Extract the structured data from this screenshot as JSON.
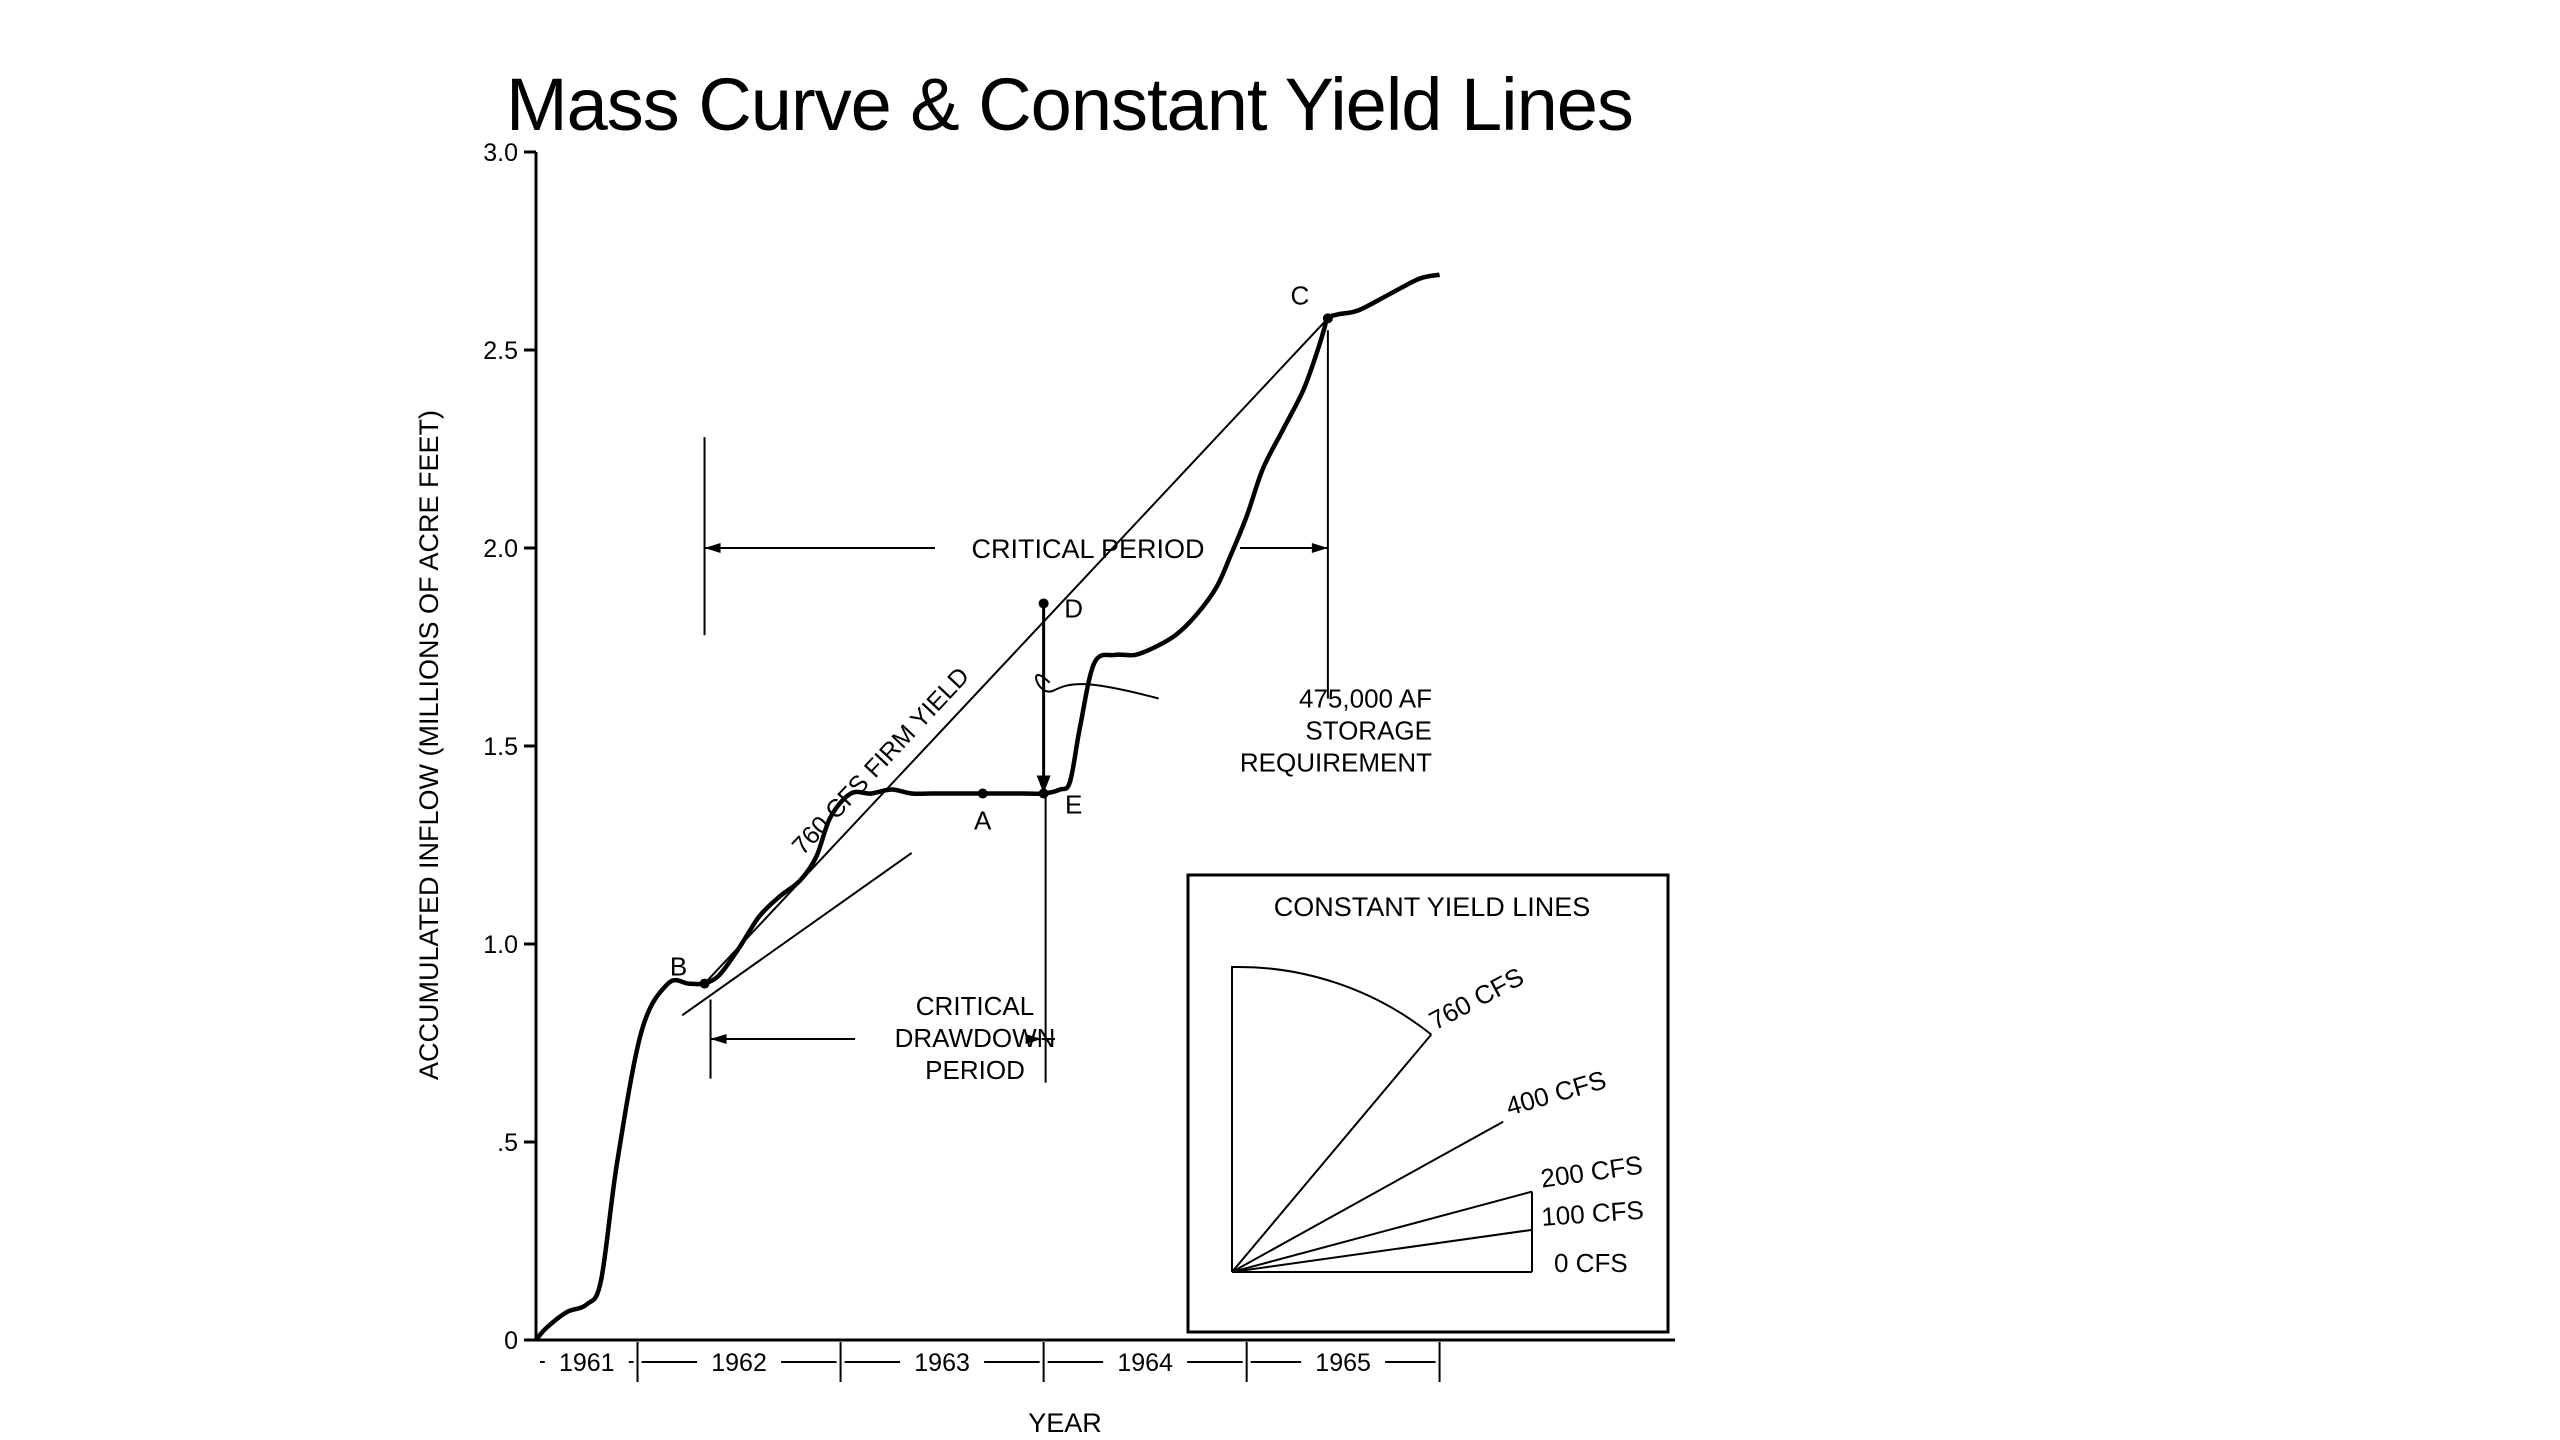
{
  "slide_title": "Mass Curve & Constant Yield Lines",
  "chart_data": {
    "type": "line",
    "ylabel": "ACCUMULATED INFLOW (MILLIONS OF ACRE FEET)",
    "xlabel": "YEAR",
    "ylim": [
      0,
      3.0
    ],
    "xlim": [
      1961.0,
      1966.25
    ],
    "yticks": [
      {
        "value": 0,
        "label": "0"
      },
      {
        "value": 0.5,
        "label": ".5"
      },
      {
        "value": 1.0,
        "label": "1.0"
      },
      {
        "value": 1.5,
        "label": "1.5"
      },
      {
        "value": 2.0,
        "label": "2.0"
      },
      {
        "value": 2.5,
        "label": "2.5"
      },
      {
        "value": 3.0,
        "label": "3.0"
      }
    ],
    "year_labels": [
      {
        "label": "1961",
        "start": 1961.0,
        "end": 1961.5
      },
      {
        "label": "1962",
        "start": 1961.5,
        "end": 1962.5
      },
      {
        "label": "1963",
        "start": 1962.5,
        "end": 1963.5
      },
      {
        "label": "1964",
        "start": 1963.5,
        "end": 1964.5
      },
      {
        "label": "1965",
        "start": 1964.5,
        "end": 1965.45
      }
    ],
    "mass_curve": {
      "x": [
        1961.0,
        1961.05,
        1961.15,
        1961.25,
        1961.32,
        1961.4,
        1961.52,
        1961.65,
        1961.75,
        1961.82,
        1961.9,
        1962.0,
        1962.1,
        1962.2,
        1962.3,
        1962.38,
        1962.45,
        1962.55,
        1962.65,
        1962.75,
        1962.85,
        1962.95,
        1963.05,
        1963.15,
        1963.25,
        1963.4,
        1963.5,
        1963.58,
        1963.63,
        1963.68,
        1963.75,
        1963.85,
        1963.95,
        1964.05,
        1964.15,
        1964.25,
        1964.35,
        1964.42,
        1964.5,
        1964.58,
        1964.68,
        1964.78,
        1964.85,
        1964.88,
        1964.9,
        1964.95,
        1965.05,
        1965.2,
        1965.35,
        1965.45
      ],
      "y": [
        0.0,
        0.03,
        0.07,
        0.09,
        0.15,
        0.45,
        0.78,
        0.9,
        0.9,
        0.9,
        0.92,
        0.99,
        1.07,
        1.12,
        1.16,
        1.22,
        1.32,
        1.38,
        1.38,
        1.39,
        1.38,
        1.38,
        1.38,
        1.38,
        1.38,
        1.38,
        1.38,
        1.39,
        1.41,
        1.55,
        1.71,
        1.73,
        1.73,
        1.75,
        1.78,
        1.83,
        1.9,
        1.98,
        2.08,
        2.2,
        2.3,
        2.4,
        2.5,
        2.55,
        2.58,
        2.59,
        2.6,
        2.64,
        2.68,
        2.69
      ]
    },
    "firm_yield_line": {
      "label": "760 CFS FIRM YIELD",
      "from": [
        1961.83,
        0.9
      ],
      "to": [
        1964.9,
        2.58
      ]
    },
    "tangent_line": {
      "from": [
        1961.72,
        0.82
      ],
      "to": [
        1962.85,
        1.23
      ]
    },
    "points": [
      {
        "label": "A",
        "x": 1963.2,
        "y": 1.38
      },
      {
        "label": "B",
        "x": 1961.83,
        "y": 0.9
      },
      {
        "label": "C",
        "x": 1964.9,
        "y": 2.58
      },
      {
        "label": "D",
        "x": 1963.5,
        "y": 1.86
      },
      {
        "label": "E",
        "x": 1963.5,
        "y": 1.38
      }
    ],
    "annotations": {
      "critical_period": {
        "label": "CRITICAL PERIOD",
        "from": 1961.83,
        "to": 1964.9,
        "y": 2.0
      },
      "critical_drawdown_period": {
        "lines": [
          "CRITICAL",
          "DRAWDOWN",
          "PERIOD"
        ],
        "from": 1961.83,
        "to": 1963.5,
        "y": 0.76
      },
      "storage_requirement": {
        "lines": [
          "475,000 AF",
          "STORAGE",
          "REQUIREMENT"
        ]
      }
    },
    "inset": {
      "title": "CONSTANT YIELD LINES",
      "yield_lines": [
        {
          "label": "760 CFS",
          "angle_deg": 50
        },
        {
          "label": "400 CFS",
          "angle_deg": 29
        },
        {
          "label": "200 CFS",
          "angle_deg": 15
        },
        {
          "label": "100 CFS",
          "angle_deg": 8
        },
        {
          "label": "0 CFS",
          "angle_deg": 0
        }
      ]
    }
  }
}
